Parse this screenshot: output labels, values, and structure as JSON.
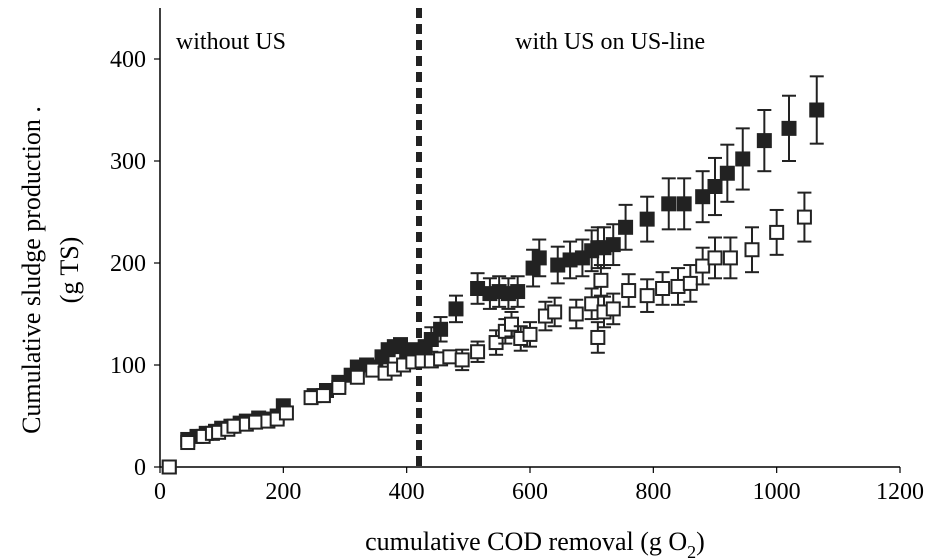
{
  "chart_data": {
    "type": "scatter",
    "xlabel": "cumulative COD removal (g O",
    "xlabel_subscript": "2",
    "xlabel_suffix": ")",
    "ylabel_line1": "Cumulative sludge production .",
    "ylabel_line2": "(g TS)",
    "xlim": [
      0,
      1200
    ],
    "ylim": [
      0,
      450
    ],
    "xticks": [
      0,
      200,
      400,
      600,
      800,
      1000,
      1200
    ],
    "yticks": [
      0,
      100,
      200,
      300,
      400
    ],
    "grid": false,
    "legend": "none",
    "divider_x": 420,
    "annotations": [
      {
        "text": "without US",
        "x": 115,
        "y": 410
      },
      {
        "text": "with US on US-line",
        "x": 730,
        "y": 410
      }
    ],
    "series": [
      {
        "marker": "filled-square",
        "color": "#222222",
        "points": [
          {
            "x": 15,
            "y": 0
          },
          {
            "x": 45,
            "y": 27
          },
          {
            "x": 60,
            "y": 30
          },
          {
            "x": 75,
            "y": 33
          },
          {
            "x": 90,
            "y": 35
          },
          {
            "x": 100,
            "y": 38
          },
          {
            "x": 115,
            "y": 40
          },
          {
            "x": 130,
            "y": 43
          },
          {
            "x": 140,
            "y": 45
          },
          {
            "x": 160,
            "y": 48
          },
          {
            "x": 175,
            "y": 47
          },
          {
            "x": 190,
            "y": 50
          },
          {
            "x": 200,
            "y": 60
          },
          {
            "x": 250,
            "y": 70
          },
          {
            "x": 270,
            "y": 75
          },
          {
            "x": 290,
            "y": 83
          },
          {
            "x": 310,
            "y": 90
          },
          {
            "x": 320,
            "y": 98
          },
          {
            "x": 335,
            "y": 100
          },
          {
            "x": 350,
            "y": 98
          },
          {
            "x": 360,
            "y": 108
          },
          {
            "x": 370,
            "y": 115
          },
          {
            "x": 380,
            "y": 118
          },
          {
            "x": 390,
            "y": 120
          },
          {
            "x": 400,
            "y": 112
          },
          {
            "x": 410,
            "y": 115
          },
          {
            "x": 430,
            "y": 118
          },
          {
            "x": 440,
            "y": 125,
            "err": 12
          },
          {
            "x": 455,
            "y": 135,
            "err": 12
          },
          {
            "x": 480,
            "y": 155,
            "err": 13
          },
          {
            "x": 515,
            "y": 175,
            "err": 15
          },
          {
            "x": 535,
            "y": 170,
            "err": 15
          },
          {
            "x": 550,
            "y": 172,
            "err": 15
          },
          {
            "x": 565,
            "y": 170,
            "err": 15
          },
          {
            "x": 580,
            "y": 172,
            "err": 15
          },
          {
            "x": 605,
            "y": 195,
            "err": 18
          },
          {
            "x": 615,
            "y": 205,
            "err": 18
          },
          {
            "x": 645,
            "y": 198,
            "err": 18
          },
          {
            "x": 665,
            "y": 203,
            "err": 18
          },
          {
            "x": 685,
            "y": 205,
            "err": 18
          },
          {
            "x": 700,
            "y": 212,
            "err": 20
          },
          {
            "x": 710,
            "y": 215,
            "err": 20
          },
          {
            "x": 720,
            "y": 215,
            "err": 20
          },
          {
            "x": 735,
            "y": 218,
            "err": 20
          },
          {
            "x": 755,
            "y": 235,
            "err": 22
          },
          {
            "x": 790,
            "y": 243,
            "err": 22
          },
          {
            "x": 825,
            "y": 258,
            "err": 25
          },
          {
            "x": 850,
            "y": 258,
            "err": 25
          },
          {
            "x": 880,
            "y": 265,
            "err": 25
          },
          {
            "x": 900,
            "y": 275,
            "err": 28
          },
          {
            "x": 920,
            "y": 288,
            "err": 28
          },
          {
            "x": 945,
            "y": 302,
            "err": 30
          },
          {
            "x": 980,
            "y": 320,
            "err": 30
          },
          {
            "x": 1020,
            "y": 332,
            "err": 32
          },
          {
            "x": 1065,
            "y": 350,
            "err": 33
          }
        ]
      },
      {
        "marker": "open-square",
        "color": "#222222",
        "points": [
          {
            "x": 15,
            "y": 0
          },
          {
            "x": 45,
            "y": 24
          },
          {
            "x": 70,
            "y": 30
          },
          {
            "x": 85,
            "y": 33
          },
          {
            "x": 95,
            "y": 34
          },
          {
            "x": 110,
            "y": 37
          },
          {
            "x": 120,
            "y": 40
          },
          {
            "x": 140,
            "y": 42
          },
          {
            "x": 155,
            "y": 44
          },
          {
            "x": 175,
            "y": 45
          },
          {
            "x": 190,
            "y": 47
          },
          {
            "x": 205,
            "y": 53
          },
          {
            "x": 245,
            "y": 68
          },
          {
            "x": 265,
            "y": 70
          },
          {
            "x": 290,
            "y": 78
          },
          {
            "x": 320,
            "y": 88
          },
          {
            "x": 345,
            "y": 95
          },
          {
            "x": 365,
            "y": 92
          },
          {
            "x": 380,
            "y": 96
          },
          {
            "x": 395,
            "y": 100
          },
          {
            "x": 410,
            "y": 103
          },
          {
            "x": 425,
            "y": 104
          },
          {
            "x": 440,
            "y": 104
          },
          {
            "x": 455,
            "y": 106
          },
          {
            "x": 470,
            "y": 108
          },
          {
            "x": 490,
            "y": 105,
            "err": 10
          },
          {
            "x": 515,
            "y": 113,
            "err": 10
          },
          {
            "x": 545,
            "y": 122,
            "err": 12
          },
          {
            "x": 560,
            "y": 133,
            "err": 12
          },
          {
            "x": 570,
            "y": 140,
            "err": 12
          },
          {
            "x": 585,
            "y": 126,
            "err": 12
          },
          {
            "x": 600,
            "y": 130,
            "err": 12
          },
          {
            "x": 625,
            "y": 148,
            "err": 14
          },
          {
            "x": 640,
            "y": 152,
            "err": 14
          },
          {
            "x": 675,
            "y": 150,
            "err": 14
          },
          {
            "x": 700,
            "y": 160,
            "err": 15
          },
          {
            "x": 710,
            "y": 127,
            "err": 15
          },
          {
            "x": 715,
            "y": 183,
            "err": 15
          },
          {
            "x": 720,
            "y": 152,
            "err": 15
          },
          {
            "x": 735,
            "y": 155,
            "err": 15
          },
          {
            "x": 760,
            "y": 173,
            "err": 16
          },
          {
            "x": 790,
            "y": 168,
            "err": 16
          },
          {
            "x": 815,
            "y": 175,
            "err": 16
          },
          {
            "x": 840,
            "y": 177,
            "err": 18
          },
          {
            "x": 860,
            "y": 180,
            "err": 18
          },
          {
            "x": 880,
            "y": 197,
            "err": 18
          },
          {
            "x": 900,
            "y": 205,
            "err": 20
          },
          {
            "x": 925,
            "y": 205,
            "err": 20
          },
          {
            "x": 960,
            "y": 213,
            "err": 22
          },
          {
            "x": 1000,
            "y": 230,
            "err": 22
          },
          {
            "x": 1045,
            "y": 245,
            "err": 24
          }
        ]
      }
    ]
  }
}
